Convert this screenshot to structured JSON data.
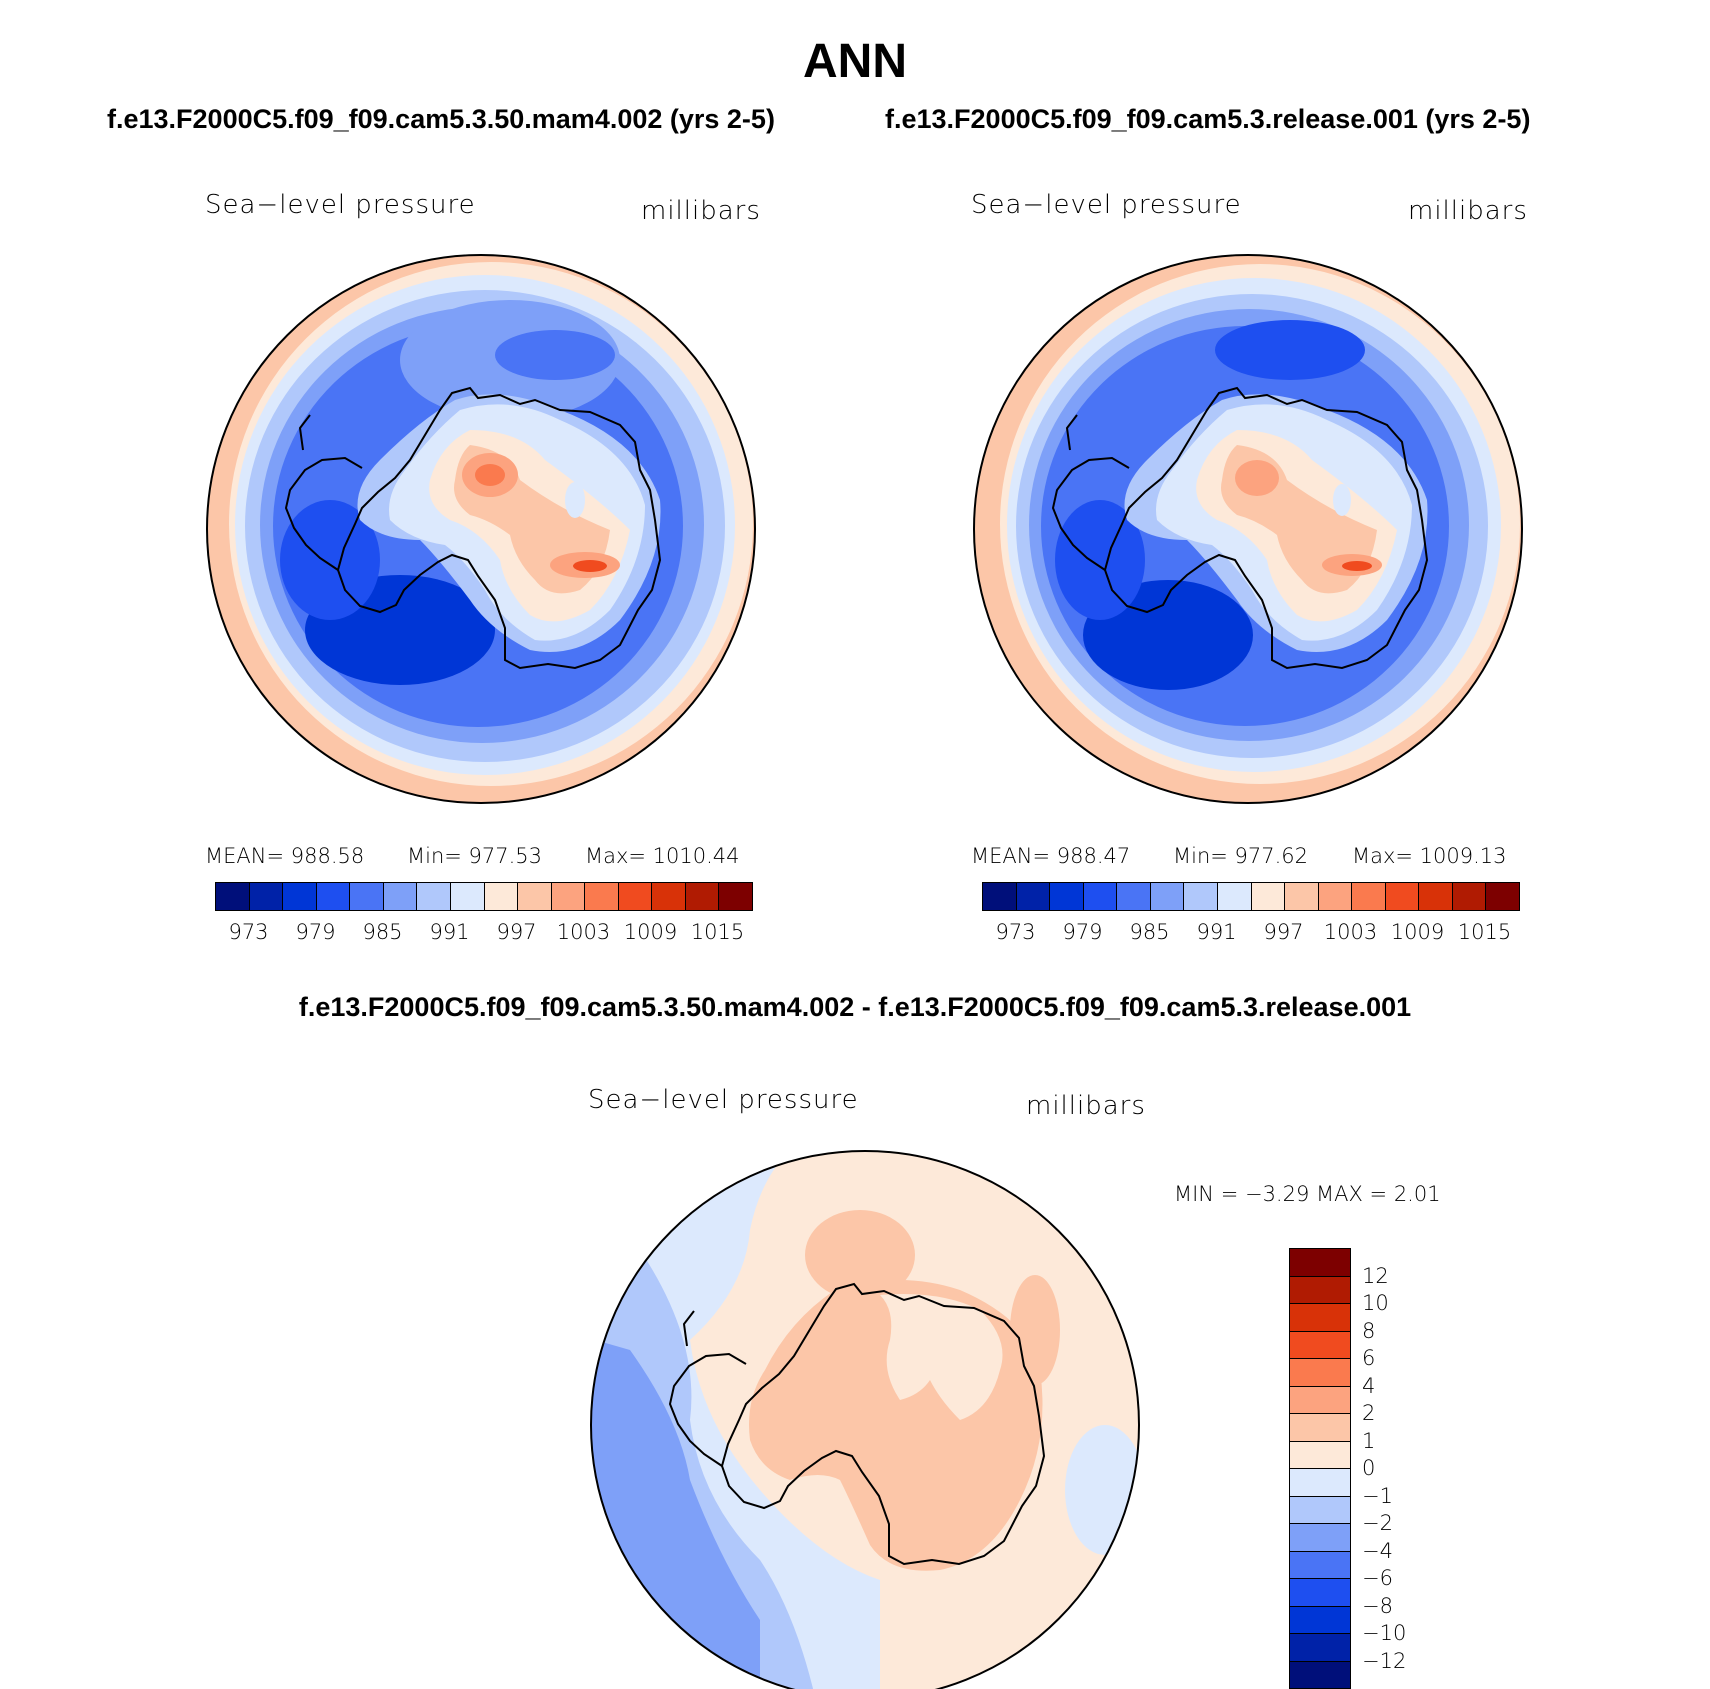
{
  "header": {
    "season": "ANN",
    "case1_title": "f.e13.F2000C5.f09_f09.cam5.3.50.mam4.002 (yrs 2-5)",
    "case2_title": "f.e13.F2000C5.f09_f09.cam5.3.release.001 (yrs 2-5)",
    "diff_title": "f.e13.F2000C5.f09_f09.cam5.3.50.mam4.002 - f.e13.F2000C5.f09_f09.cam5.3.release.001"
  },
  "panels": [
    {
      "variable": "Sea−level pressure",
      "units": "millibars",
      "mean_text": "MEAN=  988.58",
      "min_text": "Min=  977.53",
      "max_text": "Max=  1010.44"
    },
    {
      "variable": "Sea−level pressure",
      "units": "millibars",
      "mean_text": "MEAN=  988.47",
      "min_text": "Min=  977.62",
      "max_text": "Max=  1009.13"
    }
  ],
  "diff_panel": {
    "variable": "Sea−level pressure",
    "units": "millibars",
    "minmax_text": "MIN =   −3.29  MAX =     2.01"
  },
  "colorbar_abs": {
    "colors": [
      "#000f7a",
      "#0022a8",
      "#0036d6",
      "#1e4ff0",
      "#4a74f5",
      "#7ea0f8",
      "#b0c8fb",
      "#dce9fd",
      "#fde9d9",
      "#fcc6a8",
      "#fca37f",
      "#fa7a4e",
      "#f04b1f",
      "#d83208",
      "#b01b02",
      "#7d0000"
    ],
    "labels": [
      "973",
      "979",
      "985",
      "991",
      "997",
      "1003",
      "1009",
      "1015"
    ]
  },
  "colorbar_diff": {
    "colors": [
      "#7d0000",
      "#b01b02",
      "#d83208",
      "#f04b1f",
      "#fa7a4e",
      "#fca37f",
      "#fcc6a8",
      "#fde9d9",
      "#dce9fd",
      "#b0c8fb",
      "#7ea0f8",
      "#4a74f5",
      "#1e4ff0",
      "#0036d6",
      "#0022a8",
      "#000f7a"
    ],
    "labels": [
      "12",
      "10",
      "8",
      "6",
      "4",
      "2",
      "1",
      "0",
      "−1",
      "−2",
      "−4",
      "−6",
      "−8",
      "−10",
      "−12"
    ]
  }
}
